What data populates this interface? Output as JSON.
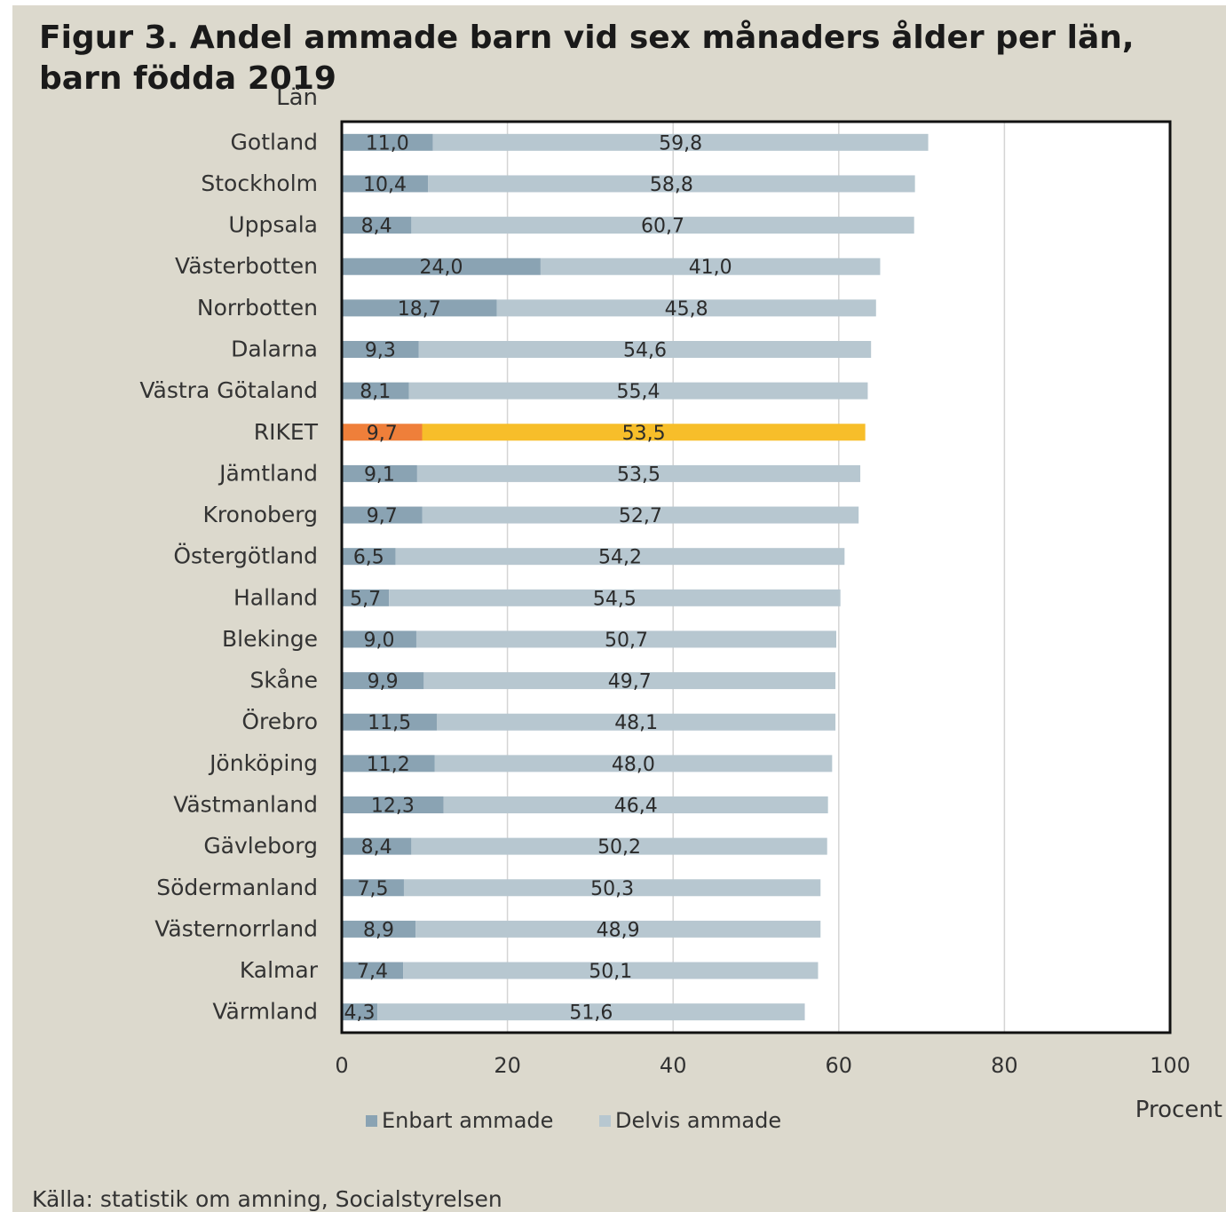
{
  "chart_data": {
    "type": "bar",
    "orientation": "horizontal",
    "stacked": true,
    "title": "Figur 3. Andel ammade barn vid sex månaders ålder per län, barn födda 2019",
    "ylabel": "Län",
    "xlabel": "Procent",
    "xlim": [
      0,
      100
    ],
    "xticks": [
      0,
      20,
      40,
      60,
      80,
      100
    ],
    "grid": "vertical",
    "legend_position": "bottom",
    "categories": [
      "Gotland",
      "Stockholm",
      "Uppsala",
      "Västerbotten",
      "Norrbotten",
      "Dalarna",
      "Västra Götaland",
      "RIKET",
      "Jämtland",
      "Kronoberg",
      "Östergötland",
      "Halland",
      "Blekinge",
      "Skåne",
      "Örebro",
      "Jönköping",
      "Västmanland",
      "Gävleborg",
      "Södermanland",
      "Västernorrland",
      "Kalmar",
      "Värmland"
    ],
    "series": [
      {
        "name": "Enbart ammade",
        "color": "#8aa3b3",
        "values": [
          11.0,
          10.4,
          8.4,
          24.0,
          18.7,
          9.3,
          8.1,
          9.7,
          9.1,
          9.7,
          6.5,
          5.7,
          9.0,
          9.9,
          11.5,
          11.2,
          12.3,
          8.4,
          7.5,
          8.9,
          7.4,
          4.3
        ],
        "labels": [
          "11,0",
          "10,4",
          "8,4",
          "24,0",
          "18,7",
          "9,3",
          "8,1",
          "9,7",
          "9,1",
          "9,7",
          "6,5",
          "5,7",
          "9,0",
          "9,9",
          "11,5",
          "11,2",
          "12,3",
          "8,4",
          "7,5",
          "8,9",
          "7,4",
          "4,3"
        ]
      },
      {
        "name": "Delvis ammade",
        "color": "#b7c7d0",
        "values": [
          59.8,
          58.8,
          60.7,
          41.0,
          45.8,
          54.6,
          55.4,
          53.5,
          53.5,
          52.7,
          54.2,
          54.5,
          50.7,
          49.7,
          48.1,
          48.0,
          46.4,
          50.2,
          50.3,
          48.9,
          50.1,
          51.6
        ],
        "labels": [
          "59,8",
          "58,8",
          "60,7",
          "41,0",
          "45,8",
          "54,6",
          "55,4",
          "53,5",
          "53,5",
          "52,7",
          "54,2",
          "54,5",
          "50,7",
          "49,7",
          "48,1",
          "48,0",
          "46,4",
          "50,2",
          "50,3",
          "48,9",
          "50,1",
          "51,6"
        ]
      }
    ],
    "highlight": {
      "category": "RIKET",
      "colors": [
        "#ef7f3a",
        "#f7be2a"
      ]
    }
  },
  "source": "Källa: statistik om amning, Socialstyrelsen"
}
